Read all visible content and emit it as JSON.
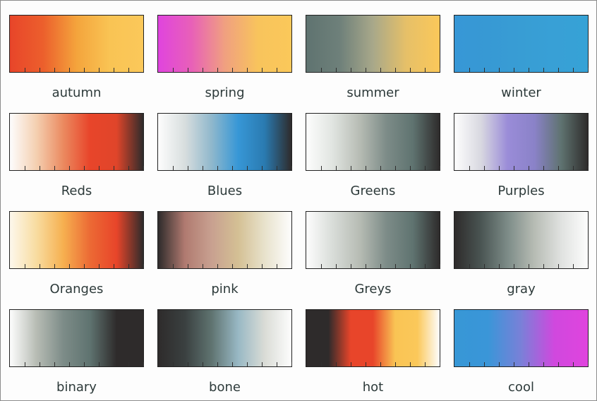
{
  "chart_data": {
    "type": "heatmap",
    "colormaps": [
      {
        "name": "autumn",
        "stops": [
          "#e8452a",
          "#ec5f2c",
          "#f4a43c",
          "#f9c454",
          "#fbc85a"
        ]
      },
      {
        "name": "spring",
        "stops": [
          "#e044de",
          "#e860b8",
          "#f0a080",
          "#f8c45c",
          "#fbc85a"
        ]
      },
      {
        "name": "summer",
        "stops": [
          "#5f7370",
          "#6e807a",
          "#a8a88a",
          "#e6c068",
          "#fbc85a"
        ]
      },
      {
        "name": "winter",
        "stops": [
          "#3797d6",
          "#3799d4",
          "#389dd4",
          "#38a0d6",
          "#36a2d6"
        ]
      },
      {
        "name": "Reds",
        "stops": [
          "#fdfdfd",
          "#f4cfb0",
          "#eb8a60",
          "#e8452a",
          "#e0452a",
          "#2e2b2b"
        ]
      },
      {
        "name": "Blues",
        "stops": [
          "#fdfdfd",
          "#d8dede",
          "#90b8cc",
          "#3797d6",
          "#2a7ab0",
          "#2e2b2b"
        ]
      },
      {
        "name": "Greens",
        "stops": [
          "#fdfdfd",
          "#e0e4e0",
          "#b7bcb4",
          "#7d8c88",
          "#5f7370",
          "#2e2b2b"
        ]
      },
      {
        "name": "Purples",
        "stops": [
          "#fdfdfd",
          "#d8d8e0",
          "#9a8cd8",
          "#8a82c8",
          "#5f7370",
          "#2e2b2b"
        ]
      },
      {
        "name": "Oranges",
        "stops": [
          "#fdf8ec",
          "#f8dca0",
          "#f6b050",
          "#ec6a34",
          "#e8452a",
          "#2e2b2b"
        ]
      },
      {
        "name": "pink",
        "stops": [
          "#2e2b2b",
          "#b07a70",
          "#c8a090",
          "#d4c094",
          "#e8e2cc",
          "#fdfdfd"
        ]
      },
      {
        "name": "Greys",
        "stops": [
          "#fdfdfd",
          "#d8dcd8",
          "#b7bcb4",
          "#7d8c88",
          "#5f7370",
          "#2e2b2b"
        ]
      },
      {
        "name": "gray",
        "stops": [
          "#2e2b2b",
          "#4a5553",
          "#7d8c88",
          "#b7bcb4",
          "#e0e2e0",
          "#fdfdfd"
        ]
      },
      {
        "name": "binary",
        "stops": [
          "#fdfdfd",
          "#b7bcb4",
          "#7d8c88",
          "#5f7370",
          "#2e2b2b",
          "#2e2b2b"
        ]
      },
      {
        "name": "bone",
        "stops": [
          "#2e2b2b",
          "#3a4040",
          "#5f7370",
          "#98b8c4",
          "#dadcd6",
          "#fdfdfd"
        ]
      },
      {
        "name": "hot",
        "stops": [
          "#2e2b2b",
          "#2e2b2b",
          "#e8452a",
          "#e8452a",
          "#f9c454",
          "#fbc85a",
          "#fdfdfd"
        ]
      },
      {
        "name": "cool",
        "stops": [
          "#3797d6",
          "#3a96d8",
          "#7a80d8",
          "#d048de",
          "#e044de"
        ]
      }
    ]
  }
}
